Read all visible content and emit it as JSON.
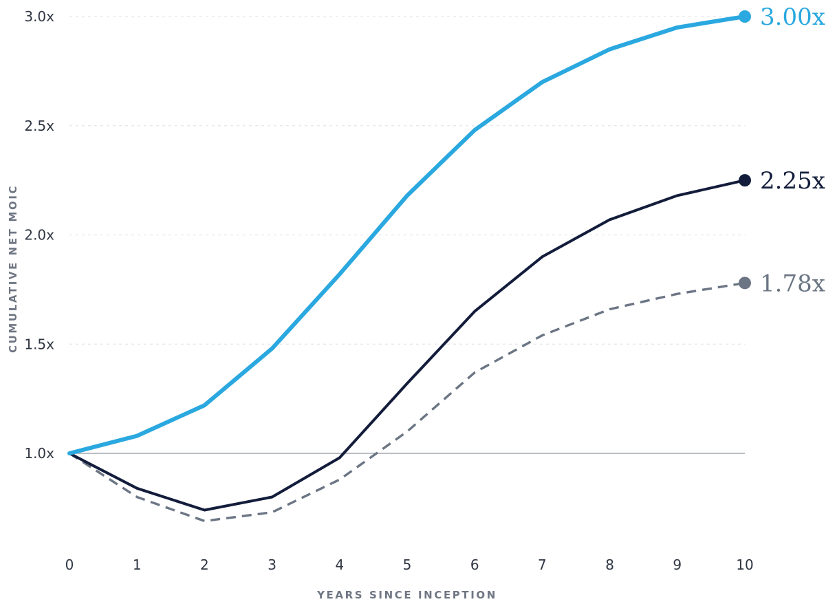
{
  "chart_data": {
    "type": "line",
    "title": "",
    "xlabel": "YEARS SINCE INCEPTION",
    "ylabel": "CUMULATIVE NET MOIC",
    "x": [
      0,
      1,
      2,
      3,
      4,
      5,
      6,
      7,
      8,
      9,
      10
    ],
    "xlim": [
      0,
      10
    ],
    "ylim": [
      0.6,
      3.0
    ],
    "yticks": [
      1.0,
      1.5,
      2.0,
      2.5,
      3.0
    ],
    "ytick_labels": [
      "1.0x",
      "1.5x",
      "2.0x",
      "2.5x",
      "3.0x"
    ],
    "xtick_labels": [
      "0",
      "1",
      "2",
      "3",
      "4",
      "5",
      "6",
      "7",
      "8",
      "9",
      "10"
    ],
    "grid": "horizontal-dashed",
    "reference_line": 1.0,
    "legend": "none",
    "series": [
      {
        "key": "top",
        "values": [
          1.0,
          1.08,
          1.22,
          1.48,
          1.82,
          2.18,
          2.48,
          2.7,
          2.85,
          2.95,
          3.0
        ],
        "end_label": "3.00x",
        "color": "#2aa8df",
        "style": "solid"
      },
      {
        "key": "middle",
        "values": [
          1.0,
          0.84,
          0.74,
          0.8,
          0.98,
          1.32,
          1.65,
          1.9,
          2.07,
          2.18,
          2.25
        ],
        "end_label": "2.25x",
        "color": "#131d3b",
        "style": "solid"
      },
      {
        "key": "bottom",
        "values": [
          1.0,
          0.8,
          0.69,
          0.73,
          0.88,
          1.1,
          1.37,
          1.54,
          1.66,
          1.73,
          1.78
        ],
        "end_label": "1.78x",
        "color": "#6b7584",
        "style": "dashed"
      }
    ]
  }
}
